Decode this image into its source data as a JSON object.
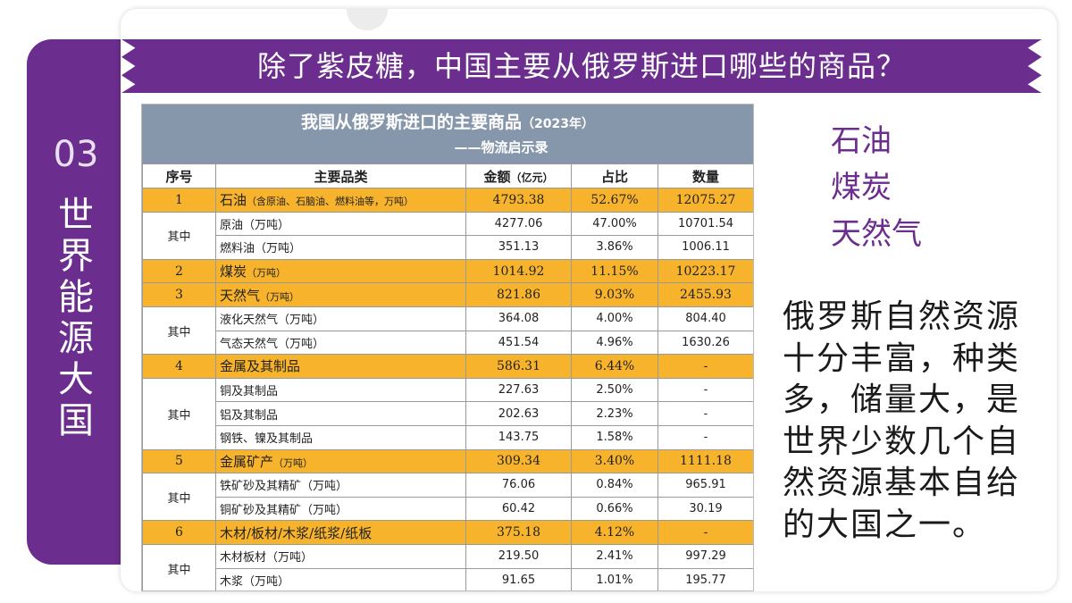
{
  "section": {
    "number": "03",
    "title_chars": [
      "世",
      "界",
      "能",
      "源",
      "大",
      "国"
    ]
  },
  "banner": {
    "question": "除了紫皮糖，中国主要从俄罗斯进口哪些的商品？"
  },
  "table": {
    "title": "我国从俄罗斯进口的主要商品",
    "title_year": "（2023年）",
    "source": "——物流启示录",
    "headers": {
      "seq": "序号",
      "category": "主要品类",
      "amount": "金额",
      "amount_unit": "（亿元）",
      "share": "占比",
      "quantity": "数量"
    },
    "group_label": "其中",
    "rows": [
      {
        "type": "main",
        "seq": "1",
        "name": "石油",
        "note": "（含原油、石脑油、燃料油等，万吨）",
        "amount": "4793.38",
        "share": "52.67%",
        "quantity": "12075.27"
      },
      {
        "type": "sub",
        "group_start": true,
        "group_span": 2,
        "name": "原油（万吨）",
        "amount": "4277.06",
        "share": "47.00%",
        "quantity": "10701.54"
      },
      {
        "type": "sub",
        "name": "燃料油（万吨）",
        "amount": "351.13",
        "share": "3.86%",
        "quantity": "1006.11"
      },
      {
        "type": "main",
        "seq": "2",
        "name": "煤炭",
        "note": "（万吨）",
        "amount": "1014.92",
        "share": "11.15%",
        "quantity": "10223.17"
      },
      {
        "type": "main",
        "seq": "3",
        "name": "天然气",
        "note": "（万吨）",
        "amount": "821.86",
        "share": "9.03%",
        "quantity": "2455.93"
      },
      {
        "type": "sub",
        "group_start": true,
        "group_span": 2,
        "name": "液化天然气（万吨）",
        "amount": "364.08",
        "share": "4.00%",
        "quantity": "804.40"
      },
      {
        "type": "sub",
        "name": "气态天然气（万吨）",
        "amount": "451.54",
        "share": "4.96%",
        "quantity": "1630.26"
      },
      {
        "type": "main",
        "seq": "4",
        "name": "金属及其制品",
        "note": "",
        "amount": "586.31",
        "share": "6.44%",
        "quantity": "-"
      },
      {
        "type": "sub",
        "group_start": true,
        "group_span": 3,
        "name": "铜及其制品",
        "amount": "227.63",
        "share": "2.50%",
        "quantity": "-"
      },
      {
        "type": "sub",
        "name": "铝及其制品",
        "amount": "202.63",
        "share": "2.23%",
        "quantity": "-"
      },
      {
        "type": "sub",
        "name": "钢铁、镍及其制品",
        "amount": "143.75",
        "share": "1.58%",
        "quantity": "-"
      },
      {
        "type": "main",
        "seq": "5",
        "name": "金属矿产",
        "note": "（万吨）",
        "amount": "309.34",
        "share": "3.40%",
        "quantity": "1111.18"
      },
      {
        "type": "sub",
        "group_start": true,
        "group_span": 2,
        "name": "铁矿砂及其精矿（万吨）",
        "amount": "76.06",
        "share": "0.84%",
        "quantity": "965.91"
      },
      {
        "type": "sub",
        "name": "铜矿砂及其精矿（万吨）",
        "amount": "60.42",
        "share": "0.66%",
        "quantity": "30.19"
      },
      {
        "type": "main",
        "seq": "6",
        "name": "木材/板材/木浆/纸浆/纸板",
        "note": "",
        "amount": "375.18",
        "share": "4.12%",
        "quantity": "-"
      },
      {
        "type": "sub",
        "group_start": true,
        "group_span": 2,
        "name": "木材板材（万吨）",
        "amount": "219.50",
        "share": "2.41%",
        "quantity": "997.29"
      },
      {
        "type": "sub",
        "name": "木浆（万吨）",
        "amount": "91.65",
        "share": "1.01%",
        "quantity": "195.77"
      }
    ]
  },
  "highlights": [
    "石油",
    "煤炭",
    "天然气"
  ],
  "description": "俄罗斯自然资源十分丰富，种类多，储量大，是世界少数几个自然资源基本自给的大国之一。",
  "colors": {
    "purple": "#6b2d8e",
    "row_highlight": "#f7b32b",
    "table_header_bg": "#8797ab"
  }
}
